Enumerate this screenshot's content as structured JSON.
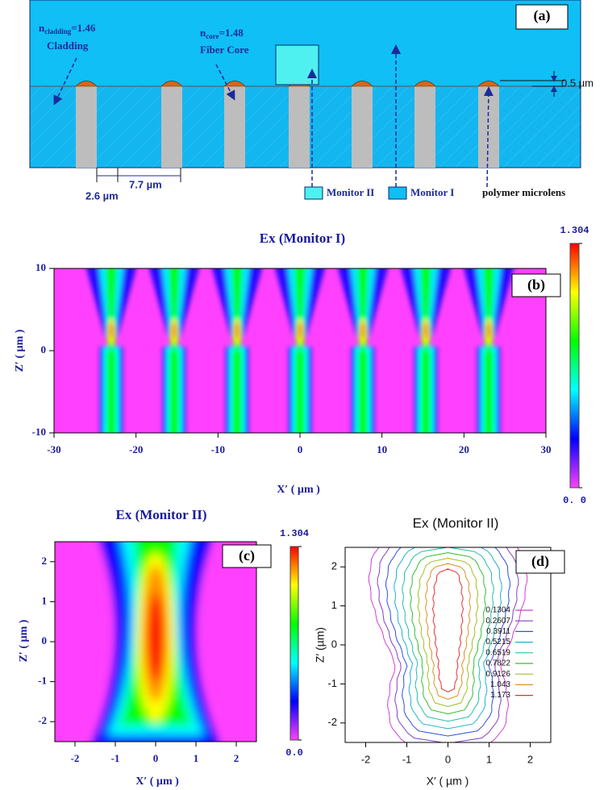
{
  "diagram": {
    "panel_label": "(a)",
    "cladding": {
      "symbol": "n",
      "subscript": "cladding",
      "value": "=1.46",
      "label": "Cladding"
    },
    "core": {
      "symbol": "n",
      "subscript": "core",
      "value": "=1.48",
      "label": "Fiber Core"
    },
    "dimensions": [
      "0.5 µm",
      "2.6 µm",
      "7.7 µm"
    ],
    "monitors": [
      "Monitor II",
      "Monitor I"
    ],
    "microlens_label": "polymer microlens"
  },
  "chart_data": [
    {
      "type": "heatmap",
      "title": "Ex (Monitor I)",
      "panel_label": "(b)",
      "x_label": "X′ ( µm )",
      "y_label": "Z′ ( µm )",
      "xlim": [
        -30,
        30
      ],
      "xticks": [
        -30,
        -20,
        -10,
        0,
        10,
        20,
        30
      ],
      "ylim": [
        -10,
        10
      ],
      "yticks": [
        -10,
        0,
        10
      ],
      "colorbar": {
        "lim": [
          0,
          1.304
        ],
        "ticks": [
          {
            "value": 0,
            "label": "0. 0"
          },
          1.304
        ],
        "colors": [
          "#ff40ff",
          "#0000ff",
          "#00ffff",
          "#00ff00",
          "#ffff00",
          "#ff0000"
        ]
      }
    },
    {
      "type": "heatmap",
      "title": "Ex (Monitor II)",
      "panel_label": "(c)",
      "x_label": "X′ ( µm )",
      "y_label": "Z′ ( µm )",
      "xlim": [
        -2.5,
        2.5
      ],
      "xticks": [
        -2,
        -1,
        0,
        1,
        2
      ],
      "ylim": [
        -2.5,
        2.5
      ],
      "yticks": [
        -2,
        -1,
        0,
        1,
        2
      ],
      "colorbar": {
        "lim": [
          0,
          1.304
        ],
        "ticks": [
          {
            "value": 0,
            "label": "0.0"
          },
          1.304
        ],
        "colors": [
          "#ff40ff",
          "#0000ff",
          "#00ffff",
          "#00ff00",
          "#ffff00",
          "#ff0000"
        ]
      }
    },
    {
      "type": "contour",
      "title": "Ex (Monitor II)",
      "panel_label": "(d)",
      "x_label": "X′ ( µm )",
      "y_label": "Z′ (µm)",
      "xlim": [
        -2.5,
        2.5
      ],
      "xticks": [
        -2,
        -1,
        0,
        1,
        2
      ],
      "ylim": [
        -2.5,
        2.5
      ],
      "yticks": [
        -2,
        -1,
        0,
        1,
        2
      ],
      "levels": [
        0.1304,
        0.2607,
        0.3911,
        0.5215,
        0.6519,
        0.7822,
        0.9126,
        1.043,
        1.173
      ],
      "colors": [
        "#d040d0",
        "#8040c0",
        "#3050e0",
        "#20b0d0",
        "#20c0a0",
        "#30c030",
        "#a0c020",
        "#e09020",
        "#e03030"
      ]
    }
  ]
}
